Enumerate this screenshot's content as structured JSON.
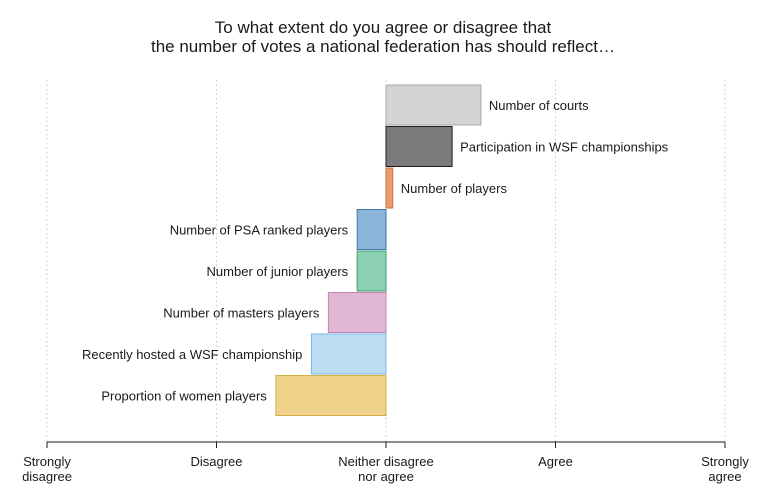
{
  "chart_data": {
    "type": "bar",
    "orientation": "horizontal",
    "title_lines": [
      "To what extent do you agree or disagree that",
      "the number of votes a national federation has should reflect…"
    ],
    "xlabel": "",
    "ylabel": "",
    "xlim": [
      1,
      5
    ],
    "baseline": 3,
    "grid": "vertical dotted",
    "legend": "none",
    "ticks": [
      {
        "value": 1,
        "lines": [
          "Strongly",
          "disagree"
        ]
      },
      {
        "value": 2,
        "lines": [
          "Disagree"
        ]
      },
      {
        "value": 3,
        "lines": [
          "Neither disagree",
          "nor agree"
        ]
      },
      {
        "value": 4,
        "lines": [
          "Agree"
        ]
      },
      {
        "value": 5,
        "lines": [
          "Strongly",
          "agree"
        ]
      }
    ],
    "categories": [
      "Number of courts",
      "Participation in WSF championships",
      "Number of players",
      "Number of PSA ranked players",
      "Number of junior players",
      "Number of masters players",
      "Recently hosted a WSF championship",
      "Proportion of women players"
    ],
    "values": [
      3.56,
      3.39,
      3.04,
      2.83,
      2.83,
      2.66,
      2.56,
      2.35
    ],
    "colors": [
      {
        "fill": "#d4d4d4",
        "stroke": "#a8a8a8"
      },
      {
        "fill": "#7b7b7b",
        "stroke": "#1e1e1e"
      },
      {
        "fill": "#e8a06a",
        "stroke": "#c6763c"
      },
      {
        "fill": "#8bb5d8",
        "stroke": "#3f78a8"
      },
      {
        "fill": "#8ccfb3",
        "stroke": "#3ba07a"
      },
      {
        "fill": "#e0b6d3",
        "stroke": "#c185b0"
      },
      {
        "fill": "#bcdcf3",
        "stroke": "#7ab8e2"
      },
      {
        "fill": "#efd28a",
        "stroke": "#d5ac45"
      }
    ]
  }
}
